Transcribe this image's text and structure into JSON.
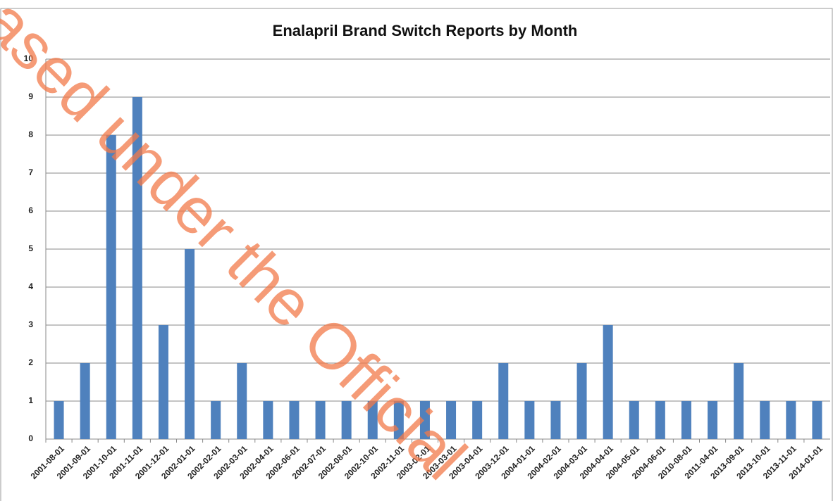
{
  "chart_data": {
    "type": "bar",
    "title": "Enalapril Brand Switch Reports by Month",
    "categories": [
      "2001-08-01",
      "2001-09-01",
      "2001-10-01",
      "2001-11-01",
      "2001-12-01",
      "2002-01-01",
      "2002-02-01",
      "2002-03-01",
      "2002-04-01",
      "2002-06-01",
      "2002-07-01",
      "2002-08-01",
      "2002-10-01",
      "2002-11-01",
      "2003-02-01",
      "2003-03-01",
      "2003-04-01",
      "2003-12-01",
      "2004-01-01",
      "2004-02-01",
      "2004-03-01",
      "2004-04-01",
      "2004-05-01",
      "2004-06-01",
      "2010-08-01",
      "2011-04-01",
      "2013-09-01",
      "2013-10-01",
      "2013-11-01",
      "2014-01-01"
    ],
    "values": [
      1,
      2,
      8,
      9,
      3,
      5,
      1,
      2,
      1,
      1,
      1,
      1,
      1,
      1,
      1,
      1,
      1,
      2,
      1,
      1,
      2,
      3,
      1,
      1,
      1,
      1,
      2,
      1,
      1,
      1
    ],
    "color": "#4f81bd",
    "ylim": [
      0,
      10
    ],
    "yticks": [
      0,
      1,
      2,
      3,
      4,
      5,
      6,
      7,
      8,
      9,
      10
    ],
    "grid": true,
    "watermark": "ased under the Official"
  }
}
